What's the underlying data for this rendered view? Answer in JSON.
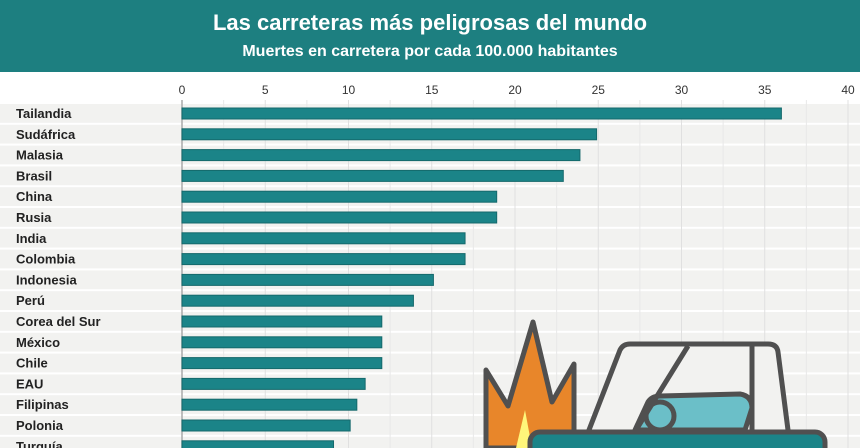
{
  "chart_data": {
    "type": "bar",
    "orientation": "horizontal",
    "title": "Las carreteras más peligrosas del mundo",
    "subtitle": "Muertes en carretera por cada 100.000 habitantes",
    "categories": [
      "Tailandia",
      "Sudáfrica",
      "Malasia",
      "Brasil",
      "China",
      "Rusia",
      "India",
      "Colombia",
      "Indonesia",
      "Perú",
      "Corea del Sur",
      "México",
      "Chile",
      "EAU",
      "Filipinas",
      "Polonia",
      "Turquía"
    ],
    "values": [
      36,
      24.9,
      23.9,
      22.9,
      18.9,
      18.9,
      17,
      17,
      15.1,
      13.9,
      12,
      12,
      12,
      11,
      10.5,
      10.1,
      9.1
    ],
    "xlim": [
      0,
      40
    ],
    "xticks": [
      0,
      5,
      10,
      15,
      20,
      25,
      30,
      35,
      40
    ],
    "grid": true,
    "colors": {
      "header": "#1d7f80",
      "bar": "#1b8488",
      "row_band": "#f2f2f0"
    }
  }
}
